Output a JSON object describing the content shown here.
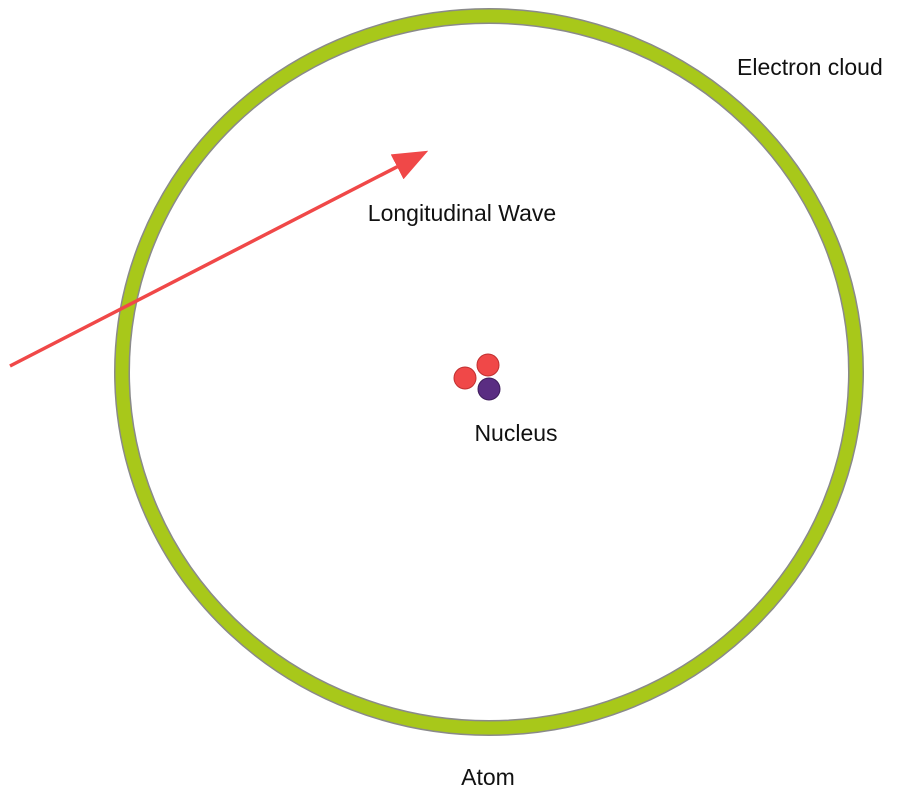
{
  "labels": {
    "electron_cloud": "Electron cloud",
    "wave": "Longitudinal Wave",
    "nucleus": "Nucleus",
    "atom": "Atom"
  }
}
